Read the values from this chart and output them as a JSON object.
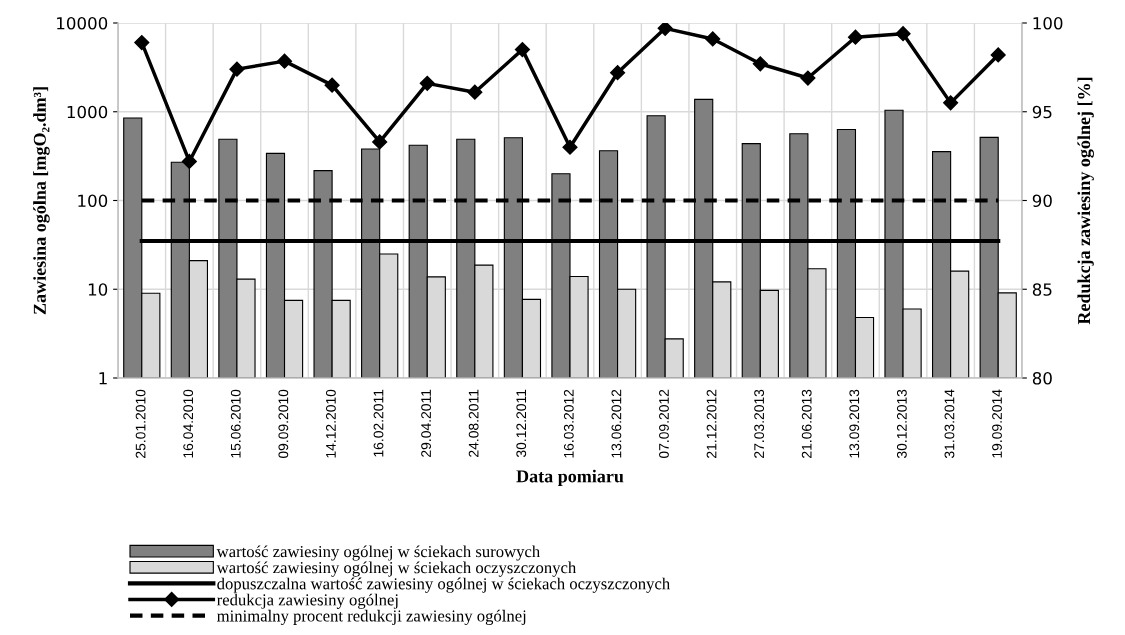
{
  "chart_data": {
    "type": "bar",
    "xlabel": "Data pomiaru",
    "ylabel": "Zawiesina ogólna [mgO₂.dm³]",
    "y2label": "Redukcja zawiesiny ogólnej [%]",
    "categories": [
      "25.01.2010",
      "16.04.2010",
      "15.06.2010",
      "09.09.2010",
      "14.12.2010",
      "16.02.2011",
      "29.04.2011",
      "24.08.2011",
      "30.12.2011",
      "16.03.2012",
      "13.06.2012",
      "07.09.2012",
      "21.12.2012",
      "27.03.2013",
      "21.06.2013",
      "13.09.2013",
      "30.12.2013",
      "31.03.2014",
      "19.09.2014"
    ],
    "series": [
      {
        "name": "wartość zawiesiny ogólnej w ściekach surowych",
        "color": "#808080",
        "values": [
          850,
          270,
          490,
          340,
          217,
          380,
          420,
          490,
          510,
          200,
          363,
          900,
          1380,
          437,
          565,
          630,
          1040,
          355,
          515
        ]
      },
      {
        "name": "wartość zawiesiny ogólnej w ściekach oczyszczonych",
        "color": "#d9d9d9",
        "values": [
          9.0,
          21,
          13,
          7.5,
          7.5,
          25,
          13.8,
          18.7,
          7.7,
          13.9,
          10,
          2.76,
          12.1,
          9.7,
          17,
          4.8,
          6.0,
          16,
          9.1
        ]
      },
      {
        "name": "redukcja zawiesiny ogólnej",
        "type": "line",
        "axis": "y2",
        "color": "#000000",
        "marker": "diamond",
        "values": [
          98.9,
          92.2,
          97.4,
          97.85,
          96.5,
          93.3,
          96.6,
          96.1,
          98.5,
          93.0,
          97.2,
          99.7,
          99.1,
          97.7,
          96.9,
          99.2,
          99.4,
          95.5,
          98.2
        ]
      }
    ],
    "ref_lines": [
      {
        "axis": "y",
        "value": 35,
        "label": "dopuszczalna wartość zawiesiny ogólnej w ściekach oczyszczonych",
        "color": "#000000",
        "line_style": "solid"
      },
      {
        "axis": "y2",
        "value": 90,
        "label": "minimalny procent redukcji zawiesiny ogólnej",
        "color": "#000000",
        "line_style": "dashed"
      }
    ],
    "log": "y",
    "ylim": [
      1,
      10000
    ],
    "yticks": [
      1,
      10,
      100,
      1000,
      10000
    ],
    "y2lim": [
      80,
      100
    ],
    "y2ticks": [
      80,
      85,
      90,
      95,
      100
    ],
    "grid": true,
    "legend": "bottom"
  }
}
